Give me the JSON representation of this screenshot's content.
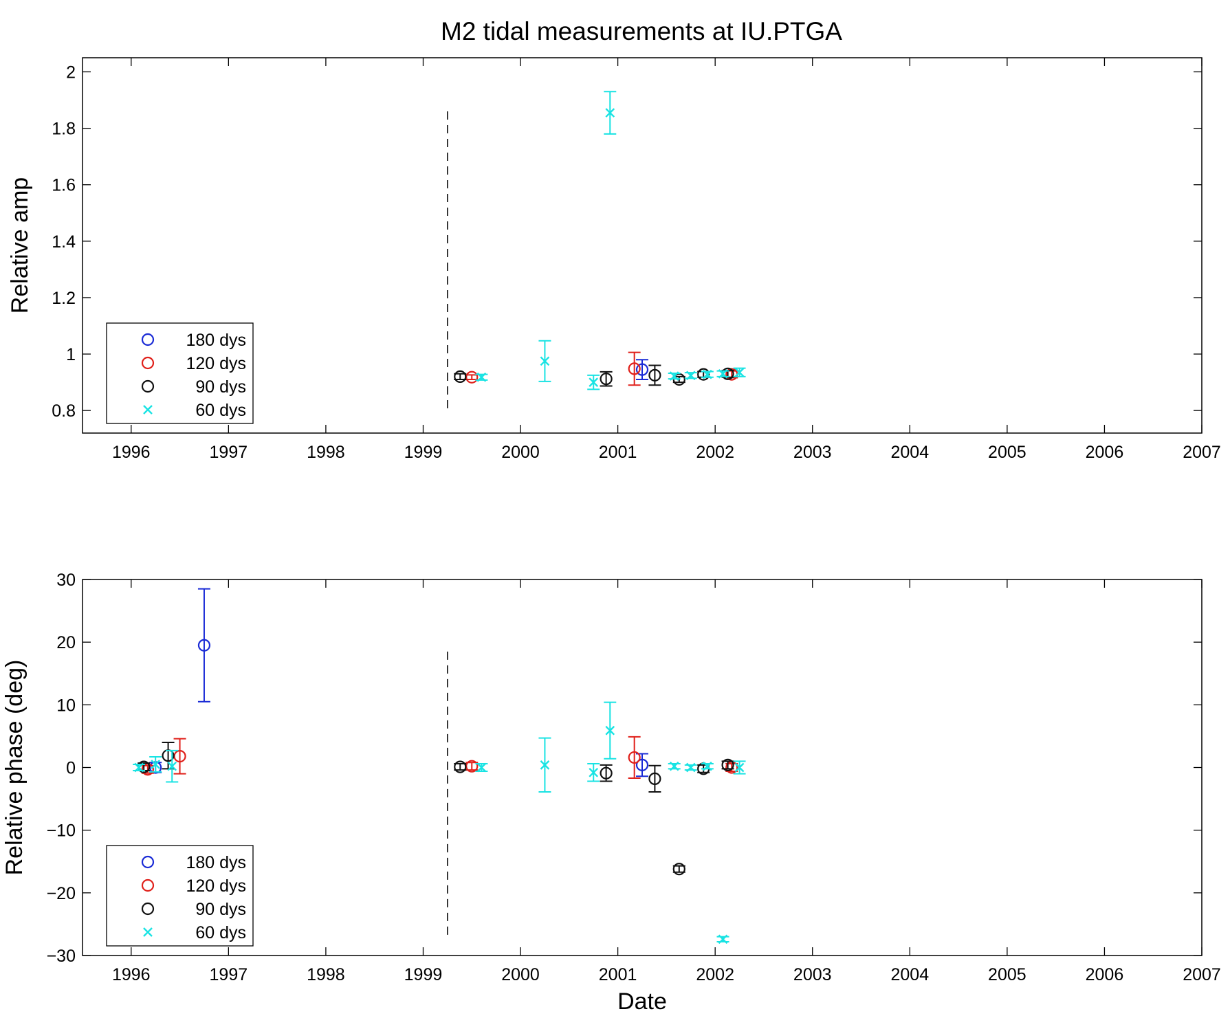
{
  "figure": {
    "title": "M2 tidal measurements at IU.PTGA"
  },
  "chart_data": [
    {
      "type": "scatter",
      "panel": "top",
      "title": "M2 tidal measurements at IU.PTGA",
      "xlabel": "",
      "ylabel": "Relative amp",
      "xlim": [
        1995.5,
        2007
      ],
      "ylim": [
        0.72,
        2.05
      ],
      "x_ticks": [
        1996,
        1997,
        1998,
        1999,
        2000,
        2001,
        2002,
        2003,
        2004,
        2005,
        2006,
        2007
      ],
      "y_ticks": [
        0.8,
        1,
        1.2,
        1.4,
        1.6,
        1.8,
        2
      ],
      "y_tick_labels": [
        "0.8",
        "1",
        "1.2",
        "1.4",
        "1.6",
        "1.8",
        "2"
      ],
      "grid": false,
      "legend_position": "lower-left",
      "vline": {
        "x": 1999.25,
        "y_range": [
          0.79,
          1.86
        ],
        "style": "dashed"
      },
      "series": [
        {
          "name": "180 dys",
          "marker": "circle",
          "color": "#1a2bd6",
          "points": [
            {
              "x": 2001.25,
              "y": 0.945,
              "err": 0.035
            }
          ]
        },
        {
          "name": "120 dys",
          "marker": "circle",
          "color": "#e0201a",
          "points": [
            {
              "x": 1999.5,
              "y": 0.918,
              "err": 0.008
            },
            {
              "x": 2001.17,
              "y": 0.948,
              "err": 0.058
            },
            {
              "x": 2002.17,
              "y": 0.928,
              "err": 0.012
            }
          ]
        },
        {
          "name": "90 dys",
          "marker": "circle",
          "color": "#111111",
          "points": [
            {
              "x": 1999.38,
              "y": 0.92,
              "err": 0.01
            },
            {
              "x": 2000.88,
              "y": 0.912,
              "err": 0.025
            },
            {
              "x": 2001.38,
              "y": 0.925,
              "err": 0.035
            },
            {
              "x": 2001.63,
              "y": 0.91,
              "err": 0.01
            },
            {
              "x": 2001.88,
              "y": 0.928,
              "err": 0.01
            },
            {
              "x": 2002.13,
              "y": 0.93,
              "err": 0.012
            }
          ]
        },
        {
          "name": "60 dys",
          "marker": "x",
          "color": "#19e3e3",
          "points": [
            {
              "x": 1999.6,
              "y": 0.918,
              "err": 0.01
            },
            {
              "x": 2000.25,
              "y": 0.975,
              "err": 0.072
            },
            {
              "x": 2000.75,
              "y": 0.9,
              "err": 0.025
            },
            {
              "x": 2000.92,
              "y": 1.855,
              "err": 0.075
            },
            {
              "x": 2001.58,
              "y": 0.922,
              "err": 0.01
            },
            {
              "x": 2001.75,
              "y": 0.924,
              "err": 0.01
            },
            {
              "x": 2001.92,
              "y": 0.928,
              "err": 0.01
            },
            {
              "x": 2002.08,
              "y": 0.93,
              "err": 0.01
            },
            {
              "x": 2002.25,
              "y": 0.935,
              "err": 0.015
            }
          ]
        }
      ]
    },
    {
      "type": "scatter",
      "panel": "bottom",
      "xlabel": "Date",
      "ylabel": "Relative phase (deg)",
      "xlim": [
        1995.5,
        2007
      ],
      "ylim": [
        -30,
        30
      ],
      "x_ticks": [
        1996,
        1997,
        1998,
        1999,
        2000,
        2001,
        2002,
        2003,
        2004,
        2005,
        2006,
        2007
      ],
      "y_ticks": [
        -30,
        -20,
        -10,
        0,
        10,
        20,
        30
      ],
      "y_tick_labels": [
        "−30",
        "−20",
        "−10",
        "0",
        "10",
        "20",
        "30"
      ],
      "grid": false,
      "legend_position": "lower-left",
      "vline": {
        "x": 1999.25,
        "y_range": [
          -27.5,
          18.5
        ],
        "style": "dashed"
      },
      "series": [
        {
          "name": "180 dys",
          "marker": "circle",
          "color": "#1a2bd6",
          "points": [
            {
              "x": 1996.25,
              "y": 0.0,
              "err": 0.8
            },
            {
              "x": 1996.75,
              "y": 19.5,
              "err": 9.0
            },
            {
              "x": 2001.25,
              "y": 0.4,
              "err": 1.8
            }
          ]
        },
        {
          "name": "120 dys",
          "marker": "circle",
          "color": "#e0201a",
          "points": [
            {
              "x": 1996.17,
              "y": -0.3,
              "err": 0.6
            },
            {
              "x": 1996.5,
              "y": 1.8,
              "err": 2.8
            },
            {
              "x": 1999.5,
              "y": 0.2,
              "err": 0.6
            },
            {
              "x": 2001.17,
              "y": 1.6,
              "err": 3.3
            },
            {
              "x": 2002.17,
              "y": 0.0,
              "err": 0.6
            }
          ]
        },
        {
          "name": "90 dys",
          "marker": "circle",
          "color": "#111111",
          "points": [
            {
              "x": 1996.13,
              "y": 0.1,
              "err": 0.6
            },
            {
              "x": 1996.38,
              "y": 1.9,
              "err": 2.1
            },
            {
              "x": 1999.38,
              "y": 0.1,
              "err": 0.5
            },
            {
              "x": 2000.88,
              "y": -0.9,
              "err": 1.3
            },
            {
              "x": 2001.38,
              "y": -1.8,
              "err": 2.1
            },
            {
              "x": 2001.63,
              "y": -16.2,
              "err": 0.5
            },
            {
              "x": 2001.88,
              "y": -0.2,
              "err": 0.6
            },
            {
              "x": 2002.13,
              "y": 0.4,
              "err": 0.6
            }
          ]
        },
        {
          "name": "60 dys",
          "marker": "x",
          "color": "#19e3e3",
          "points": [
            {
              "x": 1996.08,
              "y": 0.0,
              "err": 0.5
            },
            {
              "x": 1996.25,
              "y": 0.5,
              "err": 1.2
            },
            {
              "x": 1996.42,
              "y": 0.2,
              "err": 2.5
            },
            {
              "x": 1999.6,
              "y": 0.0,
              "err": 0.6
            },
            {
              "x": 2000.25,
              "y": 0.4,
              "err": 4.3
            },
            {
              "x": 2000.75,
              "y": -0.8,
              "err": 1.4
            },
            {
              "x": 2000.92,
              "y": 5.9,
              "err": 4.5
            },
            {
              "x": 2001.58,
              "y": 0.2,
              "err": 0.4
            },
            {
              "x": 2001.75,
              "y": 0.0,
              "err": 0.4
            },
            {
              "x": 2001.92,
              "y": 0.2,
              "err": 0.4
            },
            {
              "x": 2002.08,
              "y": -27.4,
              "err": 0.4
            },
            {
              "x": 2002.25,
              "y": 0.0,
              "err": 1.0
            }
          ]
        }
      ]
    }
  ]
}
